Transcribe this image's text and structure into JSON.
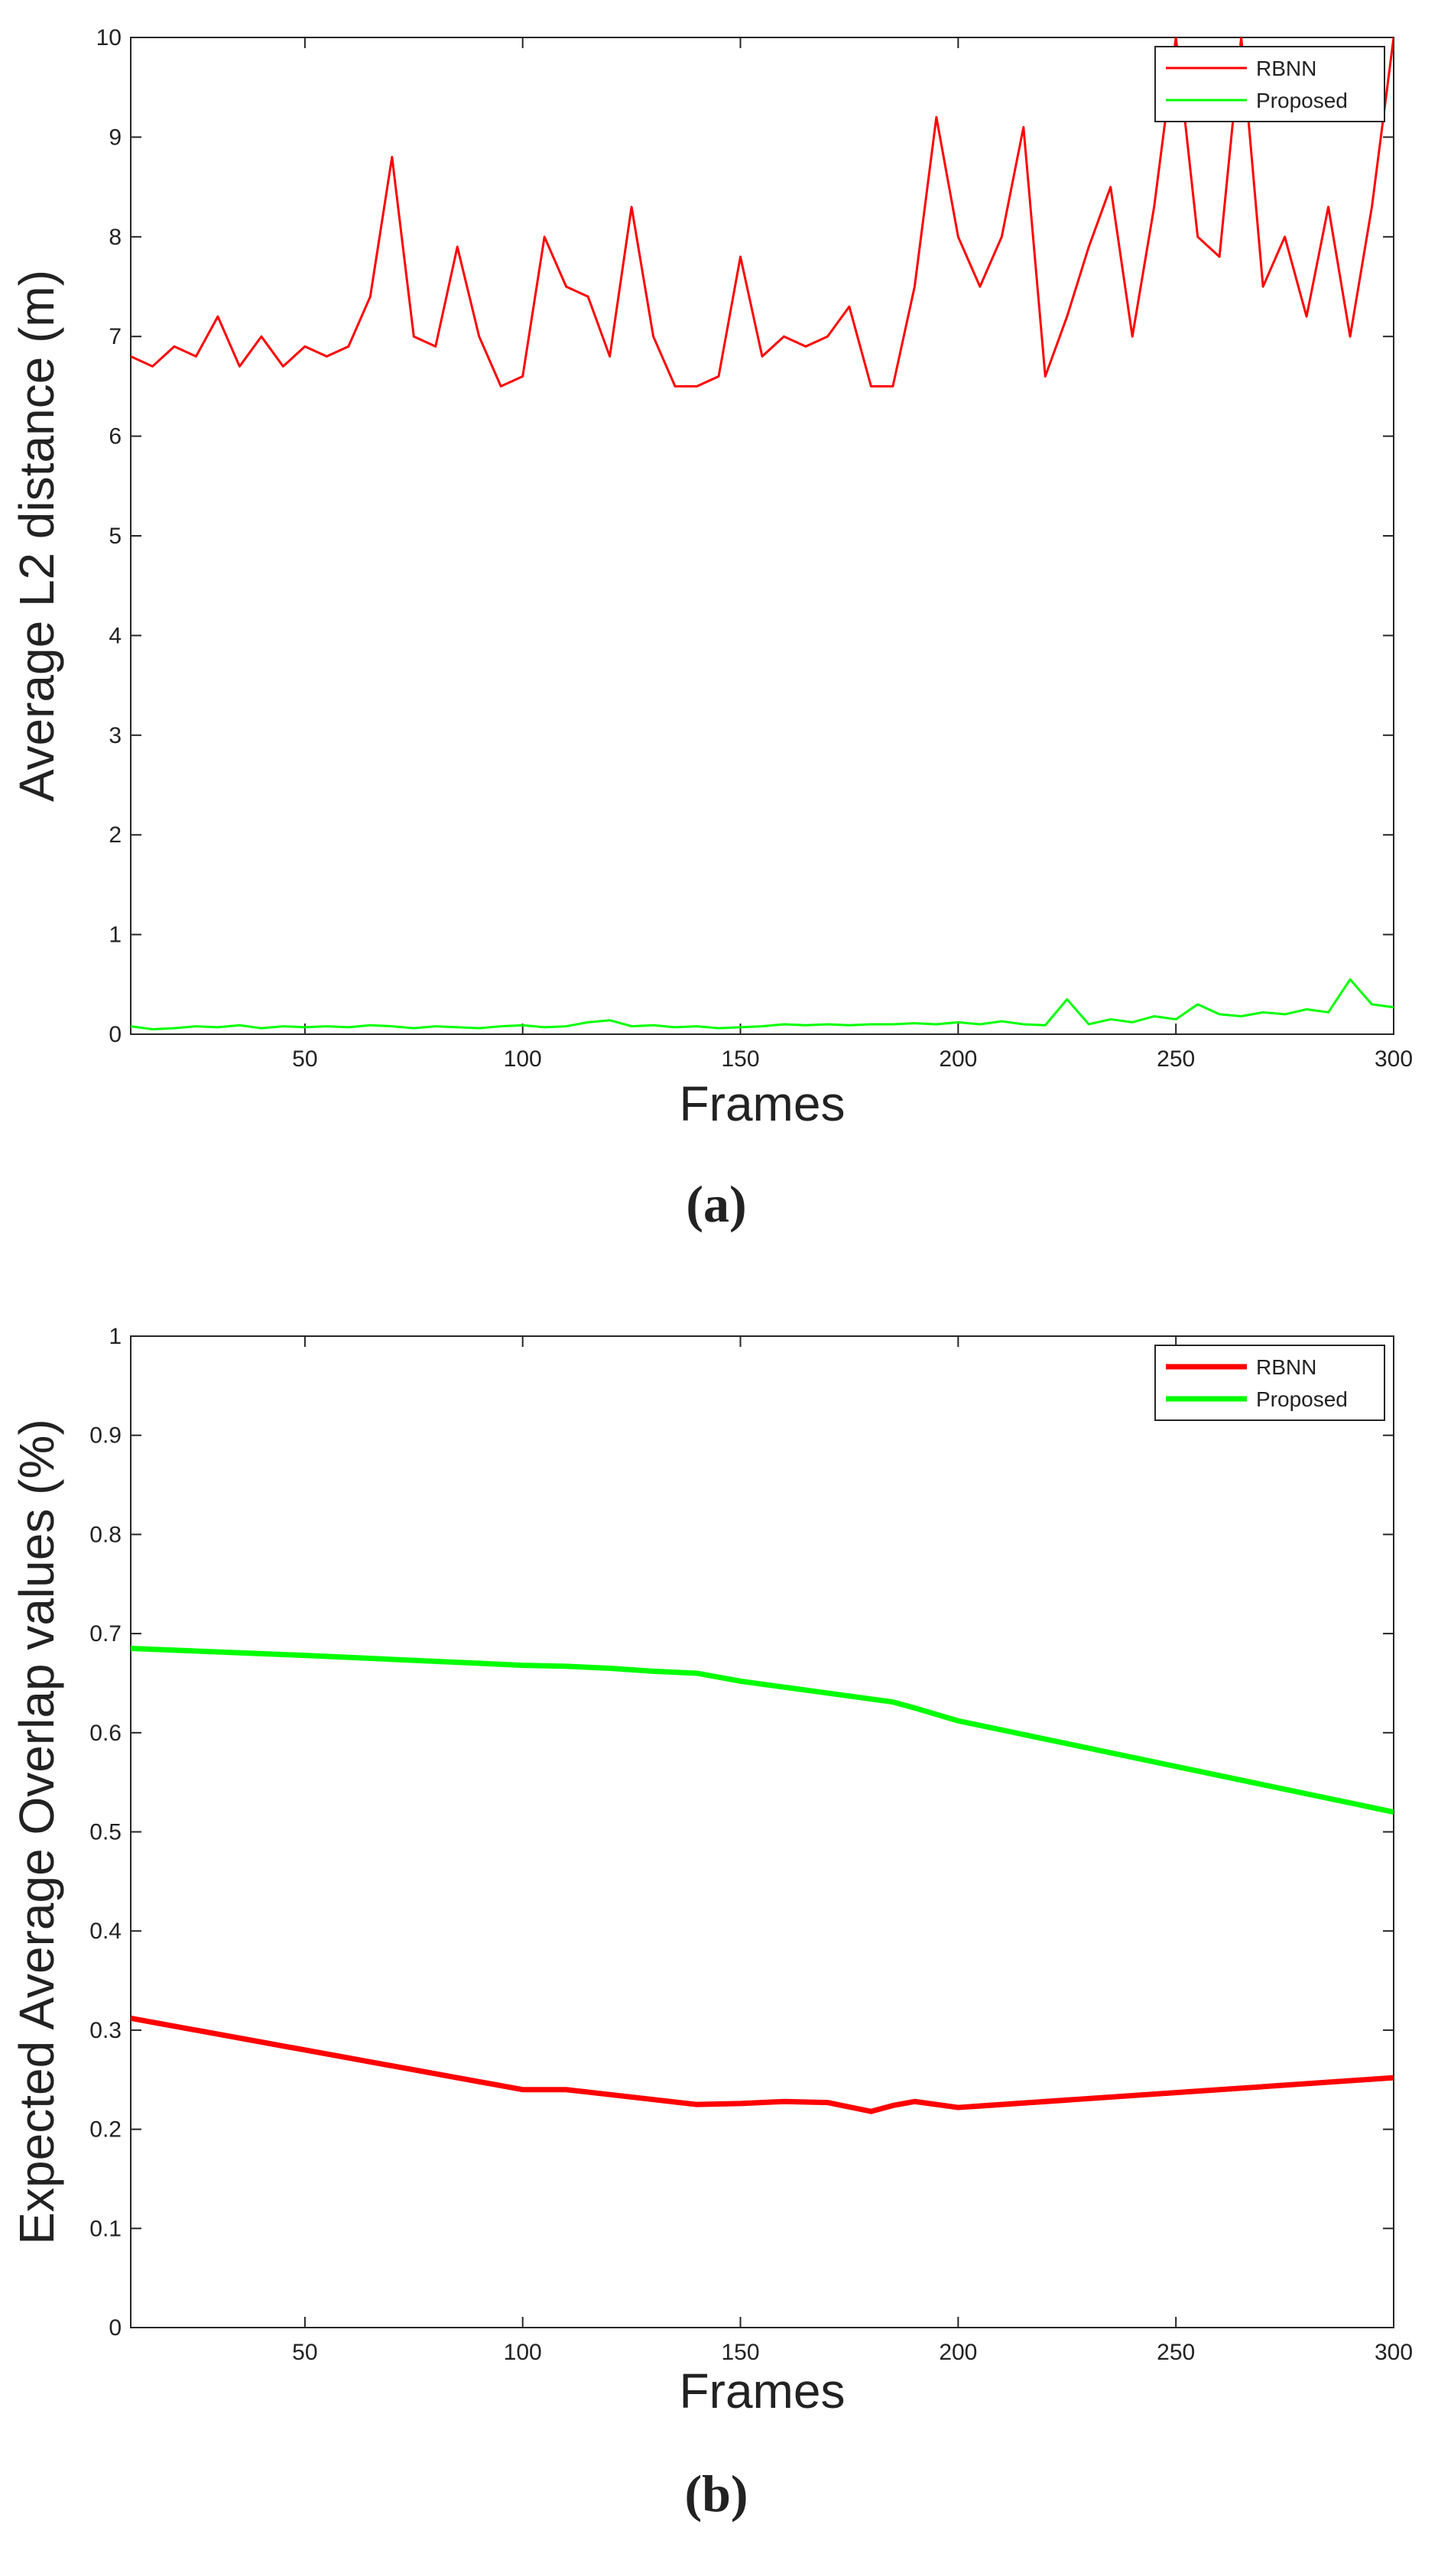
{
  "chart_data": [
    {
      "type": "line",
      "xlabel": "Frames",
      "ylabel": "Average L2 distance (m)",
      "caption": "(a)",
      "x": [
        10,
        15,
        20,
        25,
        30,
        35,
        40,
        45,
        50,
        55,
        60,
        65,
        70,
        75,
        80,
        85,
        90,
        95,
        100,
        105,
        110,
        115,
        120,
        125,
        130,
        135,
        140,
        145,
        150,
        155,
        160,
        165,
        170,
        175,
        180,
        185,
        190,
        195,
        200,
        205,
        210,
        215,
        220,
        225,
        230,
        235,
        240,
        245,
        250,
        255,
        260,
        265,
        270,
        275,
        280,
        285,
        290,
        295,
        300
      ],
      "series": [
        {
          "name": "RBNN",
          "color": "#ff0000",
          "values": [
            6.8,
            6.7,
            6.9,
            6.8,
            7.2,
            6.7,
            7.0,
            6.7,
            6.9,
            6.8,
            6.9,
            7.4,
            8.8,
            7.0,
            6.9,
            7.9,
            7.0,
            6.5,
            6.6,
            8.0,
            7.5,
            7.4,
            6.8,
            8.3,
            7.0,
            6.5,
            6.5,
            6.6,
            7.8,
            6.8,
            7.0,
            6.9,
            7.0,
            7.3,
            6.5,
            6.5,
            7.5,
            9.2,
            8.0,
            7.5,
            8.0,
            9.1,
            6.6,
            7.2,
            7.9,
            8.5,
            7.0,
            8.3,
            10.0,
            8.0,
            7.8,
            10.0,
            7.5,
            8.0,
            7.2,
            8.3,
            7.0,
            8.3,
            10.0
          ]
        },
        {
          "name": "Proposed",
          "color": "#00ff00",
          "values": [
            0.08,
            0.05,
            0.06,
            0.08,
            0.07,
            0.09,
            0.06,
            0.08,
            0.07,
            0.08,
            0.07,
            0.09,
            0.08,
            0.06,
            0.08,
            0.07,
            0.06,
            0.08,
            0.09,
            0.07,
            0.08,
            0.12,
            0.14,
            0.08,
            0.09,
            0.07,
            0.08,
            0.06,
            0.07,
            0.08,
            0.1,
            0.09,
            0.1,
            0.09,
            0.1,
            0.1,
            0.11,
            0.1,
            0.12,
            0.1,
            0.13,
            0.1,
            0.09,
            0.35,
            0.1,
            0.15,
            0.12,
            0.18,
            0.15,
            0.3,
            0.2,
            0.18,
            0.22,
            0.2,
            0.25,
            0.22,
            0.55,
            0.3,
            0.27
          ]
        }
      ],
      "xlim": [
        10,
        300
      ],
      "ylim": [
        0,
        10
      ],
      "xticks": [
        50,
        100,
        150,
        200,
        250,
        300
      ],
      "yticks": [
        0,
        1,
        2,
        3,
        4,
        5,
        6,
        7,
        8,
        9,
        10
      ],
      "legend": "upper right"
    },
    {
      "type": "line",
      "xlabel": "Frames",
      "ylabel": "Expected Average Overlap values (%)",
      "caption": "(b)",
      "x": [
        10,
        50,
        100,
        110,
        120,
        130,
        140,
        150,
        160,
        170,
        180,
        185,
        190,
        200,
        250,
        300
      ],
      "series": [
        {
          "name": "RBNN",
          "color": "#ff0000",
          "values": [
            0.312,
            0.28,
            0.24,
            0.24,
            0.235,
            0.23,
            0.225,
            0.226,
            0.228,
            0.227,
            0.218,
            0.224,
            0.228,
            0.222,
            0.237,
            0.252
          ]
        },
        {
          "name": "Proposed",
          "color": "#00ff00",
          "values": [
            0.685,
            0.678,
            0.668,
            0.667,
            0.665,
            0.662,
            0.66,
            0.652,
            0.646,
            0.64,
            0.634,
            0.631,
            0.625,
            0.612,
            0.566,
            0.52
          ]
        }
      ],
      "xlim": [
        10,
        300
      ],
      "ylim": [
        0,
        1
      ],
      "xticks": [
        50,
        100,
        150,
        200,
        250,
        300
      ],
      "yticks": [
        0,
        0.1,
        0.2,
        0.3,
        0.4,
        0.5,
        0.6,
        0.7,
        0.8,
        0.9,
        1
      ],
      "legend": "upper right"
    }
  ]
}
